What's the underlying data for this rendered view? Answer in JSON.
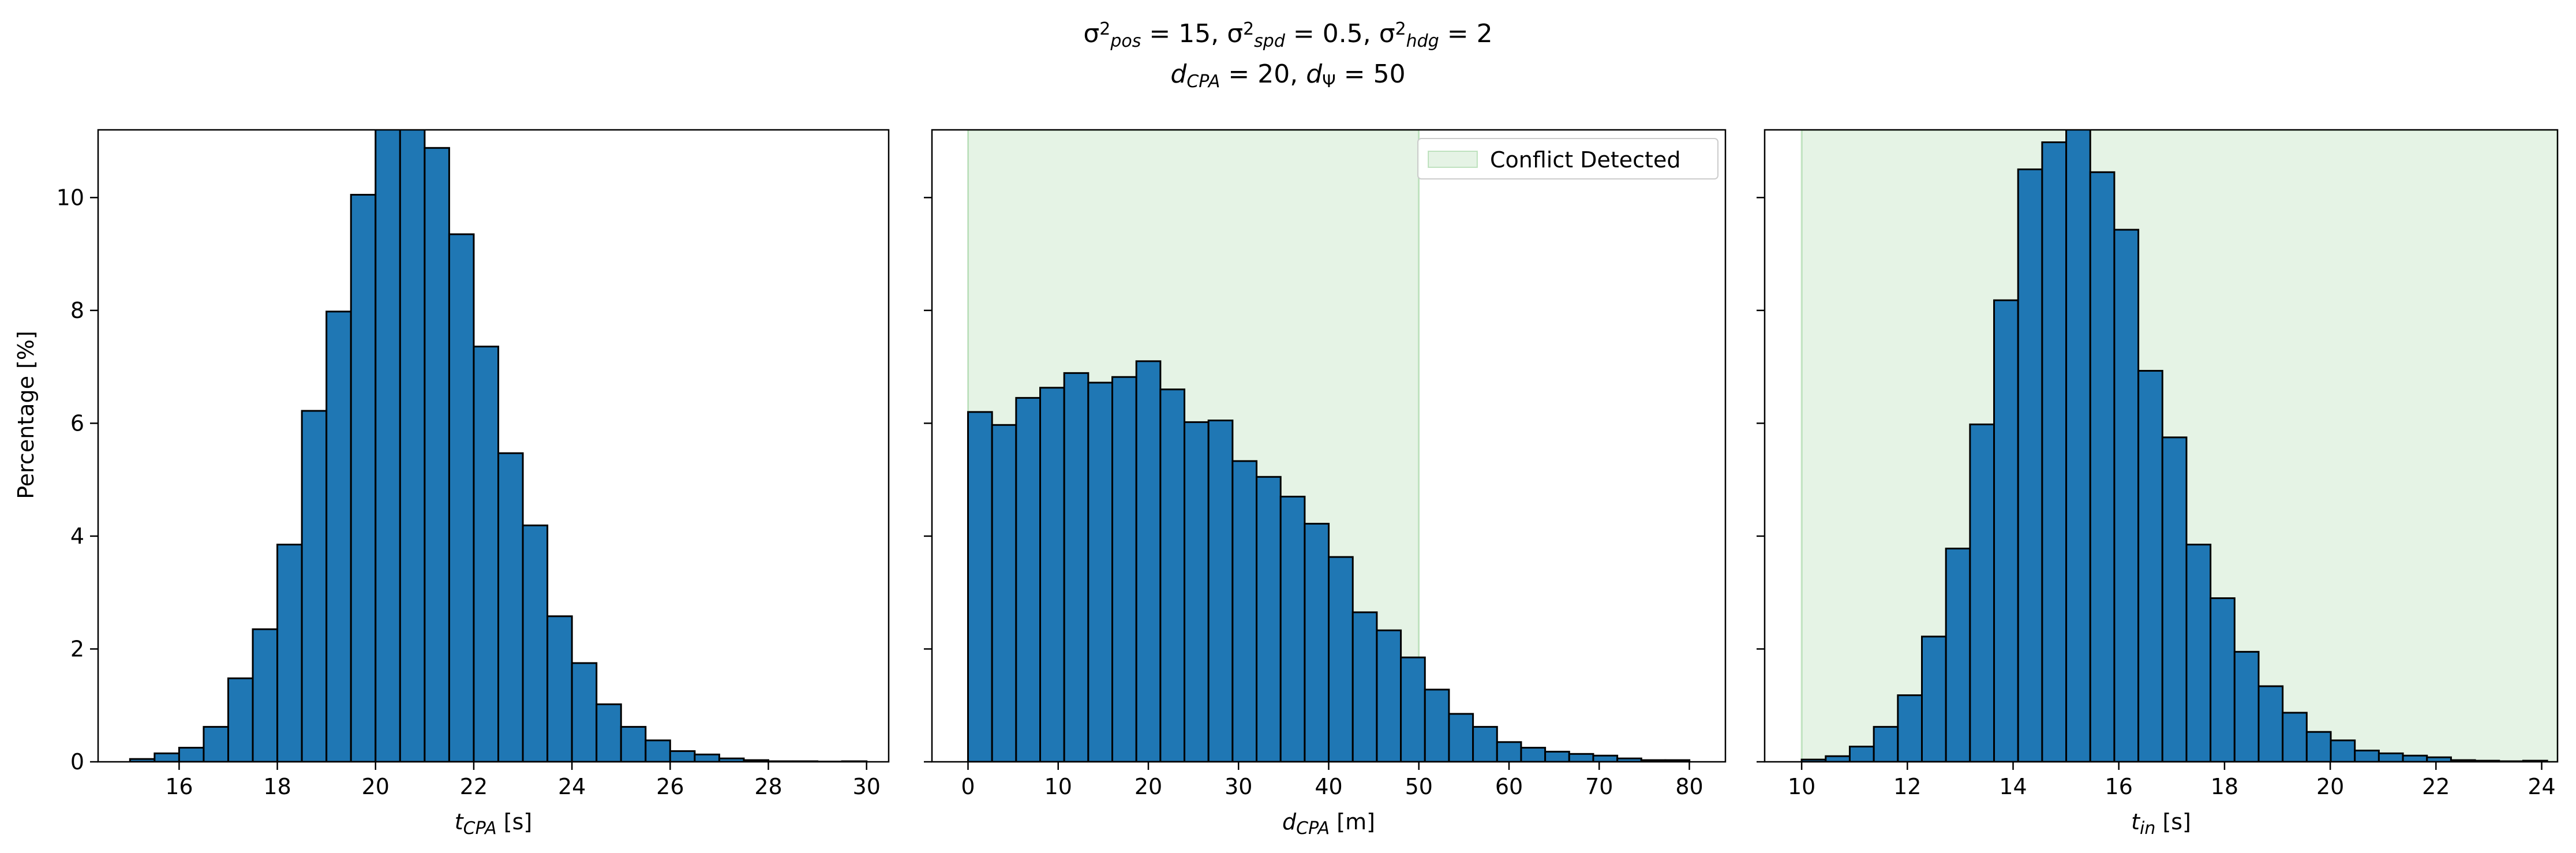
{
  "figure": {
    "suptitle_line1": {
      "parts": [
        {
          "t": "σ"
        },
        {
          "t": "2",
          "sup": true
        },
        {
          "t": "pos",
          "sub": true,
          "italic": true
        },
        {
          "t": " = 15, "
        },
        {
          "t": "σ"
        },
        {
          "t": "2",
          "sup": true
        },
        {
          "t": "spd",
          "sub": true,
          "italic": true
        },
        {
          "t": " = 0.5, "
        },
        {
          "t": "σ"
        },
        {
          "t": "2",
          "sup": true
        },
        {
          "t": "hdg",
          "sub": true,
          "italic": true
        },
        {
          "t": " = 2"
        }
      ]
    },
    "suptitle_line2": {
      "parts": [
        {
          "t": "d",
          "italic": true
        },
        {
          "t": "CPA",
          "sub": true,
          "italic": true
        },
        {
          "t": " = 20, "
        },
        {
          "t": "d",
          "italic": true
        },
        {
          "t": "Ψ",
          "sub": true
        },
        {
          "t": " = 50"
        }
      ]
    },
    "shared_ylabel": "Percentage [%]",
    "colors": {
      "bar_fill": "#1f77b4",
      "bar_edge": "#000000",
      "conflict_region": "#2ca02c"
    },
    "legend": {
      "label": "Conflict Detected",
      "placement": "upper-right of middle panel"
    }
  },
  "chart_data": [
    {
      "type": "bar",
      "name": "tcpa-histogram",
      "xlabel_parts": [
        {
          "t": "t",
          "italic": true
        },
        {
          "t": "CPA",
          "sub": true,
          "italic": true
        },
        {
          "t": " [s]"
        }
      ],
      "ylabel": "Percentage [%]",
      "xlim": [
        14.35,
        30.45
      ],
      "ylim": [
        0,
        11.2
      ],
      "xticks": [
        16,
        18,
        20,
        22,
        24,
        26,
        28,
        30
      ],
      "yticks": [
        0,
        2,
        4,
        6,
        8,
        10
      ],
      "bin_start": 15.0,
      "bin_width": 0.5,
      "values": [
        0.05,
        0.15,
        0.25,
        0.62,
        1.48,
        2.35,
        3.85,
        6.22,
        7.98,
        10.05,
        11.3,
        11.3,
        10.88,
        9.35,
        7.36,
        5.47,
        4.19,
        2.58,
        1.75,
        1.02,
        0.62,
        0.38,
        0.19,
        0.13,
        0.06,
        0.03,
        0.01,
        0.01,
        0.005,
        0.01
      ],
      "conflict_region": null,
      "show_ytick_labels": true
    },
    {
      "type": "bar",
      "name": "dcpa-histogram",
      "xlabel_parts": [
        {
          "t": "d",
          "italic": true
        },
        {
          "t": "CPA",
          "sub": true,
          "italic": true
        },
        {
          "t": " [m]"
        }
      ],
      "ylabel": "",
      "xlim": [
        -4.0,
        84.0
      ],
      "ylim": [
        0,
        11.2
      ],
      "xticks": [
        0,
        10,
        20,
        30,
        40,
        50,
        60,
        70,
        80
      ],
      "yticks": [
        0,
        2,
        4,
        6,
        8,
        10
      ],
      "bin_start": 0.0,
      "bin_width": 2.667,
      "values": [
        6.2,
        5.97,
        6.45,
        6.63,
        6.89,
        6.72,
        6.82,
        7.1,
        6.6,
        6.02,
        6.05,
        5.33,
        5.05,
        4.7,
        4.22,
        3.63,
        2.65,
        2.33,
        1.85,
        1.28,
        0.85,
        0.62,
        0.35,
        0.25,
        0.18,
        0.14,
        0.11,
        0.06,
        0.03,
        0.03
      ],
      "conflict_region": [
        0,
        50
      ],
      "show_ytick_labels": false
    },
    {
      "type": "bar",
      "name": "tin-histogram",
      "xlabel_parts": [
        {
          "t": "t",
          "italic": true
        },
        {
          "t": "in",
          "sub": true,
          "italic": true
        },
        {
          "t": " [s]"
        }
      ],
      "ylabel": "",
      "xlim": [
        9.3,
        24.3
      ],
      "ylim": [
        0,
        11.2
      ],
      "xticks": [
        10,
        12,
        14,
        16,
        18,
        20,
        22,
        24
      ],
      "yticks": [
        0,
        2,
        4,
        6,
        8,
        10
      ],
      "bin_start": 10.0,
      "bin_width": 0.455,
      "values": [
        0.04,
        0.1,
        0.27,
        0.62,
        1.18,
        2.22,
        3.78,
        5.98,
        8.18,
        10.5,
        10.98,
        11.25,
        10.45,
        9.43,
        6.93,
        5.75,
        3.85,
        2.9,
        1.95,
        1.34,
        0.87,
        0.53,
        0.38,
        0.2,
        0.15,
        0.11,
        0.08,
        0.03,
        0.02,
        0.01,
        0.02
      ],
      "conflict_region": [
        10,
        24.3
      ],
      "show_ytick_labels": false
    }
  ]
}
